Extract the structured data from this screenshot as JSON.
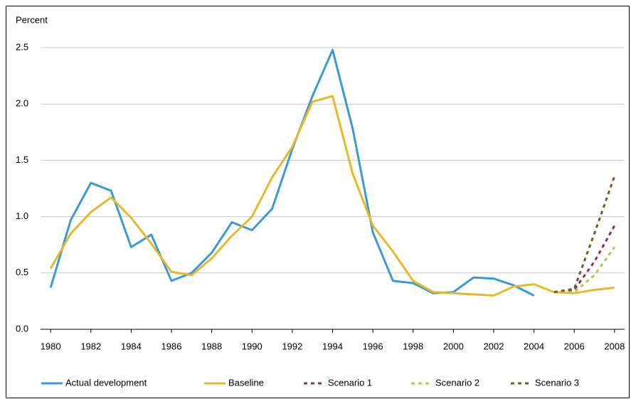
{
  "chart_data": {
    "type": "line",
    "y_axis_label": "Percent",
    "x": [
      1980,
      1981,
      1982,
      1983,
      1984,
      1985,
      1986,
      1987,
      1988,
      1989,
      1990,
      1991,
      1992,
      1993,
      1994,
      1995,
      1996,
      1997,
      1998,
      1999,
      2000,
      2001,
      2002,
      2003,
      2004,
      2005,
      2006,
      2007,
      2008
    ],
    "xlim": [
      1979.5,
      2008.5
    ],
    "xticks": [
      1980,
      1982,
      1984,
      1986,
      1988,
      1990,
      1992,
      1994,
      1996,
      1998,
      2000,
      2002,
      2004,
      2006,
      2008
    ],
    "ylim": [
      0,
      2.5
    ],
    "yticks": [
      {
        "value": 0,
        "label": "0.0"
      },
      0.5,
      {
        "value": 1,
        "label": "1.0"
      },
      1.5,
      {
        "value": 2,
        "label": "2.0"
      },
      2.5
    ],
    "grid": true,
    "legend": "bottom",
    "series": [
      {
        "name": "Actual development",
        "color": "#3a9ad9",
        "style": "solid",
        "values": [
          0.37,
          0.97,
          1.3,
          1.23,
          0.73,
          0.84,
          0.43,
          0.5,
          0.68,
          0.95,
          0.88,
          1.07,
          1.6,
          2.07,
          2.48,
          1.78,
          0.86,
          0.43,
          0.41,
          0.32,
          0.33,
          0.46,
          0.45,
          0.39,
          0.3,
          null,
          null,
          null,
          null
        ]
      },
      {
        "name": "Baseline",
        "color": "#e8b828",
        "style": "solid",
        "values": [
          0.54,
          0.85,
          1.04,
          1.17,
          0.99,
          0.76,
          0.51,
          0.48,
          0.63,
          0.83,
          1.0,
          1.35,
          1.62,
          2.02,
          2.07,
          1.38,
          0.92,
          0.69,
          0.43,
          0.33,
          0.32,
          0.31,
          0.3,
          0.38,
          0.4,
          0.33,
          0.32,
          0.35,
          0.37
        ]
      },
      {
        "name": "Scenario 1",
        "color": "#9b2a5a",
        "style": "dashed",
        "values": [
          null,
          null,
          null,
          null,
          null,
          null,
          null,
          null,
          null,
          null,
          null,
          null,
          null,
          null,
          null,
          null,
          null,
          null,
          null,
          null,
          null,
          null,
          null,
          null,
          null,
          0.33,
          0.35,
          0.6,
          0.92
        ]
      },
      {
        "name": "Scenario 2",
        "color": "#a8d04a",
        "style": "dashed",
        "values": [
          null,
          null,
          null,
          null,
          null,
          null,
          null,
          null,
          null,
          null,
          null,
          null,
          null,
          null,
          null,
          null,
          null,
          null,
          null,
          null,
          null,
          null,
          null,
          null,
          null,
          0.33,
          0.33,
          0.48,
          0.73
        ]
      },
      {
        "name": "Scenario 3",
        "color": "#7a5a20",
        "style": "dashed",
        "values": [
          null,
          null,
          null,
          null,
          null,
          null,
          null,
          null,
          null,
          null,
          null,
          null,
          null,
          null,
          null,
          null,
          null,
          null,
          null,
          null,
          null,
          null,
          null,
          null,
          null,
          0.33,
          0.36,
          0.85,
          1.36
        ]
      }
    ]
  }
}
